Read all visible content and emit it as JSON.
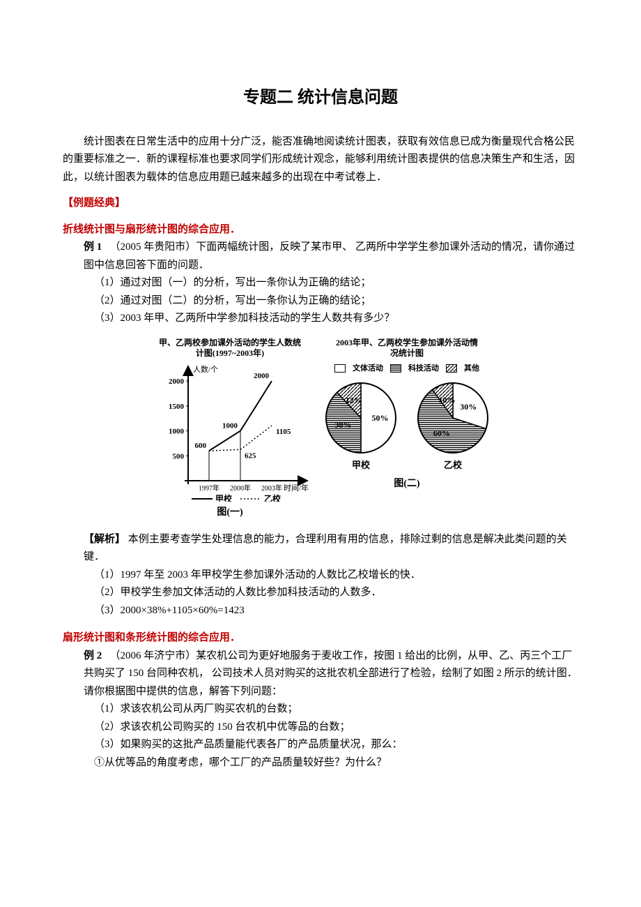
{
  "title": "专题二  统计信息问题",
  "intro": "统计图表在日常生活中的应用十分广泛，能否准确地阅读统计图表，获取有效信息已成为衡量现代合格公民的重要标准之一．新的课程标准也要求同学们形成统计观念，能够利用统计图表提供的信息决策生产和生活，因此，以统计图表为载体的信息应用题已越来越多的出现在中考试卷上．",
  "sec1": {
    "header": "【例题经典】",
    "sub": "折线统计图与扇形统计图的综合应用．",
    "label": "例 1",
    "text": "（2005 年贵阳市）下面两幅统计图，反映了某市甲、  乙两所中学学生参加课外活动的情况，请你通过图中信息回答下面的问题．",
    "q1": "（1）通过对图（一）的分析，写出一条你认为正确的结论；",
    "q2": "（2）通过对图（二）的分析，写出一条你认为正确的结论；",
    "q3": "（3）2003 年甲、乙两所中学参加科技活动的学生人数共有多少？"
  },
  "fig1": {
    "title": "甲、乙两校参加课外活动的学生人数统计图(1997~2003年)",
    "ylabel": "人数/个",
    "xlabel": "时间/年",
    "yticks": [
      500,
      1000,
      1500,
      2000
    ],
    "xticks": [
      "1997年",
      "2000年",
      "2003年"
    ],
    "seriesA": {
      "name": "甲校",
      "values": [
        600,
        1000,
        2000
      ]
    },
    "seriesB": {
      "name": "乙校",
      "values": [
        600,
        625,
        1105
      ]
    },
    "caption": "图(一)",
    "line_color": "#000000",
    "background_color": "#ffffff",
    "ylim": [
      0,
      2100
    ],
    "fontsize_axis": 11,
    "fontsize_label": 11
  },
  "fig2": {
    "title": "2003年甲、乙两校学生参加课外活动情况统计图",
    "legend": [
      "文体活动",
      "科技活动",
      "其他"
    ],
    "pieA": {
      "name": "甲校",
      "slices": [
        {
          "label": "50%",
          "value": 50,
          "fill": "white"
        },
        {
          "label": "38%",
          "value": 38,
          "fill": "hatch"
        },
        {
          "label": "12%",
          "value": 12,
          "fill": "diag"
        }
      ]
    },
    "pieB": {
      "name": "乙校",
      "slices": [
        {
          "label": "30%",
          "value": 30,
          "fill": "white"
        },
        {
          "label": "60%",
          "value": 60,
          "fill": "hatch"
        },
        {
          "label": "10%",
          "value": 10,
          "fill": "diag"
        }
      ]
    },
    "caption": "图(二)",
    "border_color": "#000000"
  },
  "analysis": {
    "label": "【解析】",
    "intro": "本例主要考查学生处理信息的能力，合理利用有用的信息，排除过剩的信息是解决此类问题的关键．",
    "a1": "（1）1997 年至 2003 年甲校学生参加课外活动的人数比乙校增长的快．",
    "a2": "（2）甲校学生参加文体活动的人数比参加科技活动的人数多．",
    "a3": "（3）2000×38%+1105×60%=1423"
  },
  "sec2": {
    "sub": "扇形统计图和条形统计图的综合应用．",
    "label": "例 2",
    "text": "（2006 年济宁市）某农机公司为更好地服务于麦收工作，按图 1 给出的比例，从甲、乙、丙三个工厂共购买了 150 台同种农机，  公司技术人员对购买的这批农机全部进行了检验，绘制了如图 2 所示的统计图．",
    "req": "请你根据图中提供的信息，解答下列问题：",
    "q1": "（1）求该农机公司从丙厂购买农机的台数；",
    "q2": "（2）求该农机公司购买的 150 台农机中优等品的台数；",
    "q3": "（3）如果购买的这批产品质量能代表各厂的产品质量状况，那么：",
    "q3a": "①从优等品的角度考虑，哪个工厂的产品质量较好些？为什么？"
  }
}
